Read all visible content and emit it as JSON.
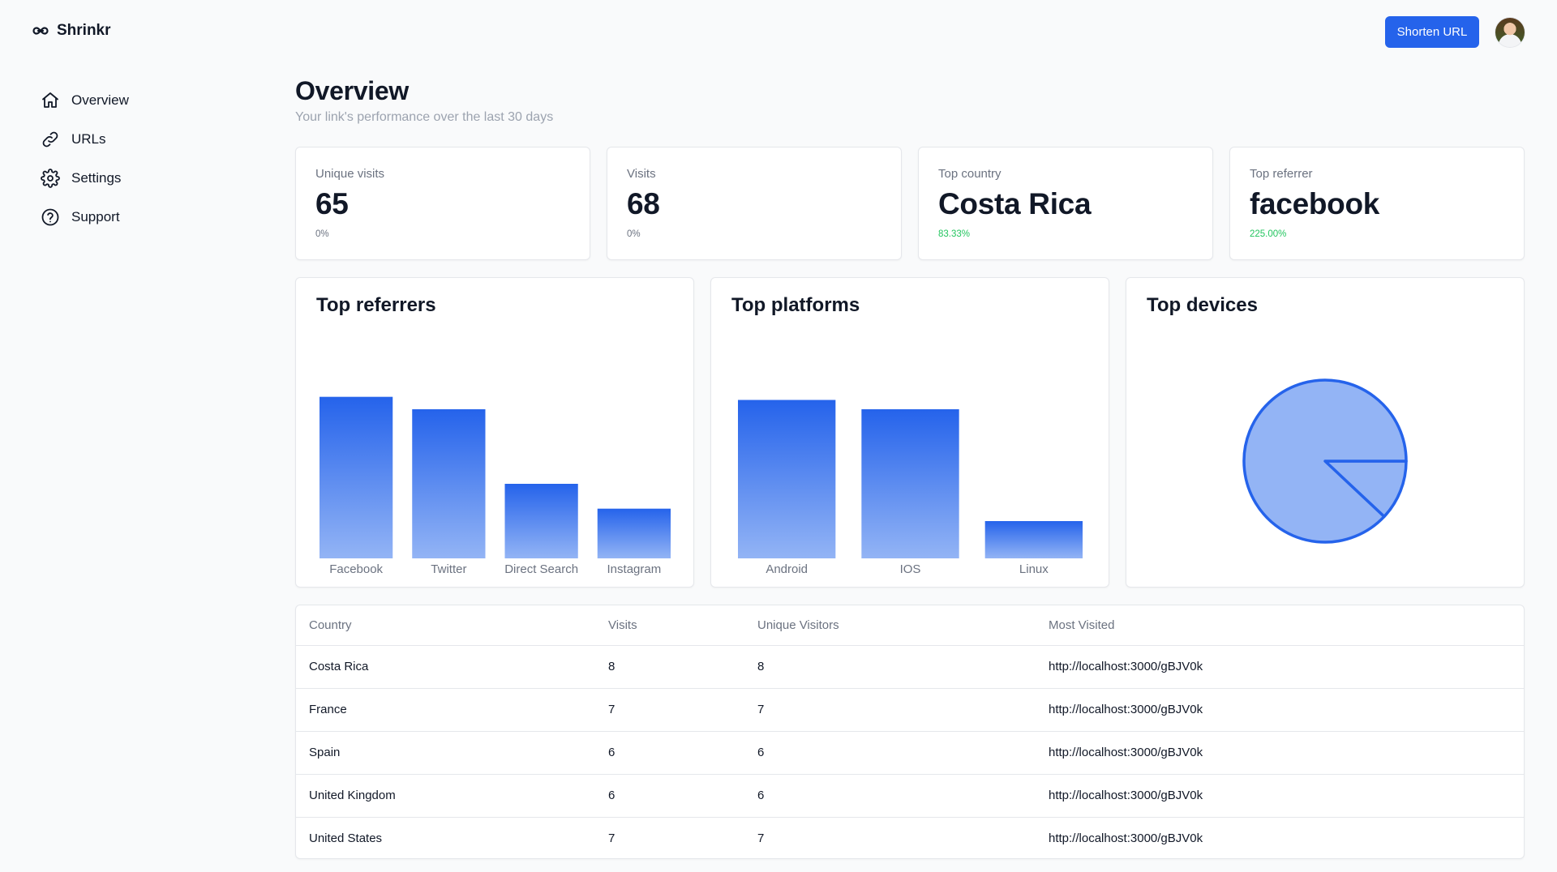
{
  "app": {
    "name": "Shrinkr",
    "logo_icon": "infinity-link-icon"
  },
  "header": {
    "shorten_label": "Shorten URL",
    "avatar_icon": "user-avatar"
  },
  "sidebar": {
    "items": [
      {
        "label": "Overview",
        "icon": "home-icon"
      },
      {
        "label": "URLs",
        "icon": "link-icon"
      },
      {
        "label": "Settings",
        "icon": "gear-icon"
      },
      {
        "label": "Support",
        "icon": "help-circle-icon"
      }
    ]
  },
  "page": {
    "title": "Overview",
    "subtitle": "Your link's performance over the last 30 days"
  },
  "stats": [
    {
      "label": "Unique visits",
      "value": "65",
      "delta": "0%",
      "trend": "neutral"
    },
    {
      "label": "Visits",
      "value": "68",
      "delta": "0%",
      "trend": "neutral"
    },
    {
      "label": "Top country",
      "value": "Costa Rica",
      "delta": "83.33%",
      "trend": "up"
    },
    {
      "label": "Top referrer",
      "value": "facebook",
      "delta": "225.00%",
      "trend": "up"
    }
  ],
  "colors": {
    "accent": "#2563eb",
    "bar_top": "#2563eb",
    "bar_bottom": "#93b4f5",
    "pie_fill": "#93b4f5",
    "positive": "#22c55e"
  },
  "chart_data": [
    {
      "type": "bar",
      "title": "Top referrers",
      "categories": [
        "Facebook",
        "Twitter",
        "Direct Search",
        "Instagram"
      ],
      "values": [
        26,
        24,
        12,
        8
      ],
      "ylim": [
        0,
        30
      ]
    },
    {
      "type": "bar",
      "title": "Top platforms",
      "categories": [
        "Android",
        "IOS",
        "Linux"
      ],
      "values": [
        34,
        32,
        8
      ],
      "ylim": [
        0,
        40
      ]
    },
    {
      "type": "pie",
      "title": "Top devices",
      "categories": [
        "",
        ""
      ],
      "values": [
        88,
        12
      ]
    }
  ],
  "table": {
    "headers": [
      "Country",
      "Visits",
      "Unique Visitors",
      "Most Visited"
    ],
    "rows": [
      [
        "Costa Rica",
        "8",
        "8",
        "http://localhost:3000/gBJV0k"
      ],
      [
        "France",
        "7",
        "7",
        "http://localhost:3000/gBJV0k"
      ],
      [
        "Spain",
        "6",
        "6",
        "http://localhost:3000/gBJV0k"
      ],
      [
        "United Kingdom",
        "6",
        "6",
        "http://localhost:3000/gBJV0k"
      ],
      [
        "United States",
        "7",
        "7",
        "http://localhost:3000/gBJV0k"
      ]
    ]
  }
}
